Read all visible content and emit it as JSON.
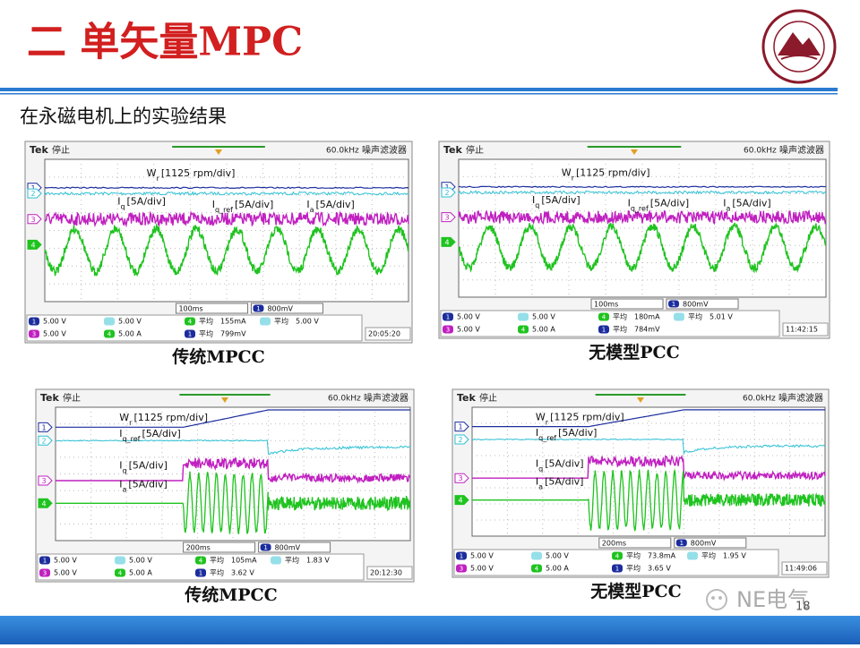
{
  "header": {
    "title": "二 单矢量MPC"
  },
  "subtitle": "在永磁电机上的实验结果",
  "panels": [
    {
      "caption": "传统MPCC",
      "scope": {
        "brand": "Tek",
        "state": "停止",
        "freq": "60.0kHz",
        "filter": "噪声滤波器",
        "channels": [
          "1",
          "2",
          "3",
          "4"
        ],
        "annotations": [
          {
            "main": "W",
            "sub": "r",
            "unit": "[1125 rpm/div]"
          },
          {
            "main": "I",
            "sub": "q",
            "unit": "[5A/div]"
          },
          {
            "main": "I",
            "sub": "q_ref",
            "unit": "[5A/div]"
          },
          {
            "main": "I",
            "sub": "a",
            "unit": "[5A/div]"
          }
        ],
        "timebase": "100ms",
        "trigger": {
          "ch": "1",
          "text": "800mV"
        },
        "readouts": [
          {
            "ch": "1",
            "text": "5.00 V"
          },
          {
            "text": "5.00 V"
          },
          {
            "ch": "4",
            "label": "平均",
            "text": "155mA"
          },
          {
            "label": "平均",
            "text": "5.00 V"
          },
          {
            "ch": "3",
            "text": "5.00 V"
          },
          {
            "ch": "4",
            "text": "5.00 A"
          },
          {
            "ch": "1",
            "label": "平均",
            "text": "799mV"
          }
        ],
        "time": "20:05:20"
      }
    },
    {
      "caption": "无模型PCC",
      "scope": {
        "brand": "Tek",
        "state": "停止",
        "freq": "60.0kHz",
        "filter": "噪声滤波器",
        "channels": [
          "1",
          "2",
          "3",
          "4"
        ],
        "annotations": [
          {
            "main": "W",
            "sub": "r",
            "unit": "[1125 rpm/div]"
          },
          {
            "main": "I",
            "sub": "q",
            "unit": "[5A/div]"
          },
          {
            "main": "I",
            "sub": "q_ref",
            "unit": "[5A/div]"
          },
          {
            "main": "I",
            "sub": "a",
            "unit": "[5A/div]"
          }
        ],
        "timebase": "100ms",
        "trigger": {
          "ch": "1",
          "text": "800mV"
        },
        "readouts": [
          {
            "ch": "1",
            "text": "5.00 V"
          },
          {
            "text": "5.00 V"
          },
          {
            "ch": "4",
            "label": "平均",
            "text": "180mA"
          },
          {
            "label": "平均",
            "text": "5.01 V"
          },
          {
            "ch": "3",
            "text": "5.00 V"
          },
          {
            "ch": "4",
            "text": "5.00 A"
          },
          {
            "ch": "1",
            "label": "平均",
            "text": "784mV"
          }
        ],
        "time": "11:42:15"
      }
    },
    {
      "caption": "传统MPCC",
      "scope": {
        "brand": "Tek",
        "state": "停止",
        "freq": "60.0kHz",
        "filter": "噪声滤波器",
        "channels": [
          "1",
          "2",
          "3",
          "4"
        ],
        "annotations": [
          {
            "main": "W",
            "sub": "r",
            "unit": "[1125 rpm/div]"
          },
          {
            "main": "I",
            "sub": "q_ref",
            "unit": "[5A/div]"
          },
          {
            "main": "I",
            "sub": "q",
            "unit": "[5A/div]"
          },
          {
            "main": "I",
            "sub": "a",
            "unit": "[5A/div]"
          }
        ],
        "timebase": "200ms",
        "trigger": {
          "ch": "1",
          "text": "800mV"
        },
        "readouts": [
          {
            "ch": "1",
            "text": "5.00 V"
          },
          {
            "text": "5.00 V"
          },
          {
            "ch": "4",
            "label": "平均",
            "text": "105mA"
          },
          {
            "label": "平均",
            "text": "1.83 V"
          },
          {
            "ch": "3",
            "text": "5.00 V"
          },
          {
            "ch": "4",
            "text": "5.00 A"
          },
          {
            "ch": "1",
            "label": "平均",
            "text": "3.62 V"
          }
        ],
        "time": "20:12:30"
      }
    },
    {
      "caption": "无模型PCC",
      "scope": {
        "brand": "Tek",
        "state": "停止",
        "freq": "60.0kHz",
        "filter": "噪声滤波器",
        "channels": [
          "1",
          "2",
          "3",
          "4"
        ],
        "annotations": [
          {
            "main": "W",
            "sub": "r",
            "unit": "[1125 rpm/div]"
          },
          {
            "main": "I",
            "sub": "q_ref",
            "unit": "[5A/div]"
          },
          {
            "main": "I",
            "sub": "q",
            "unit": "[5A/div]"
          },
          {
            "main": "I",
            "sub": "a",
            "unit": "[5A/div]"
          }
        ],
        "timebase": "200ms",
        "trigger": {
          "ch": "1",
          "text": "800mV"
        },
        "readouts": [
          {
            "ch": "1",
            "text": "5.00 V"
          },
          {
            "text": "5.00 V"
          },
          {
            "ch": "4",
            "label": "平均",
            "text": "73.8mA"
          },
          {
            "label": "平均",
            "text": "1.95 V"
          },
          {
            "ch": "3",
            "text": "5.00 V"
          },
          {
            "ch": "4",
            "text": "5.00 A"
          },
          {
            "ch": "1",
            "label": "平均",
            "text": "3.65 V"
          }
        ],
        "time": "11:49:06"
      }
    }
  ],
  "page_number": "18",
  "watermark": "NE电气"
}
